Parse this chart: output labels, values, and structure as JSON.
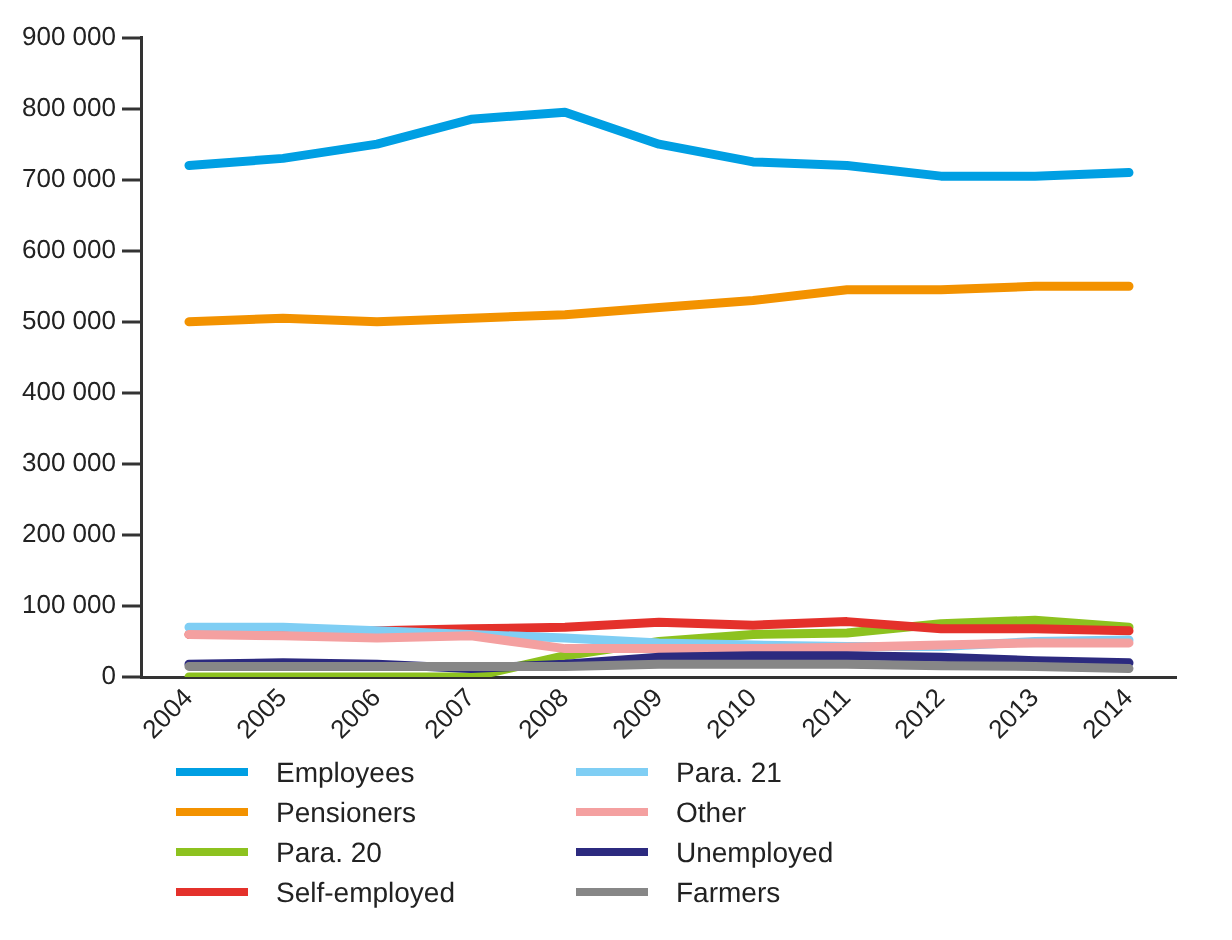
{
  "chart_data": {
    "type": "line",
    "categories": [
      "2004",
      "2005",
      "2006",
      "2007",
      "2008",
      "2009",
      "2010",
      "2011",
      "2012",
      "2013",
      "2014"
    ],
    "ylim": [
      0,
      900000
    ],
    "yticks": [
      {
        "value": 0,
        "label": "0"
      },
      {
        "value": 100000,
        "label": "100 000"
      },
      {
        "value": 200000,
        "label": "200 000"
      },
      {
        "value": 300000,
        "label": "300 000"
      },
      {
        "value": 400000,
        "label": "400 000"
      },
      {
        "value": 500000,
        "label": "500 000"
      },
      {
        "value": 600000,
        "label": "600 000"
      },
      {
        "value": 700000,
        "label": "700 000"
      },
      {
        "value": 800000,
        "label": "800 000"
      },
      {
        "value": 900000,
        "label": "900 000"
      }
    ],
    "grid": false,
    "legend": "bottom left",
    "marker": "none",
    "line_style": "solid",
    "series": [
      {
        "name": "Employees",
        "color": "#009fe3",
        "values": [
          720000,
          730000,
          750000,
          785000,
          795000,
          750000,
          725000,
          720000,
          705000,
          705000,
          710000
        ]
      },
      {
        "name": "Pensioners",
        "color": "#f39200",
        "values": [
          500000,
          505000,
          500000,
          505000,
          510000,
          520000,
          530000,
          545000,
          545000,
          550000,
          550000
        ]
      },
      {
        "name": "Para. 20",
        "color": "#8dc21f",
        "values": [
          0,
          0,
          0,
          0,
          30000,
          50000,
          60000,
          62000,
          75000,
          80000,
          70000
        ]
      },
      {
        "name": "Self-employed",
        "color": "#e4312b",
        "values": [
          60000,
          60000,
          65000,
          68000,
          70000,
          77000,
          73000,
          78000,
          68000,
          68000,
          65000
        ]
      },
      {
        "name": "Para. 21",
        "color": "#7fcef4",
        "values": [
          70000,
          70000,
          65000,
          60000,
          55000,
          48000,
          45000,
          43000,
          43000,
          50000,
          52000
        ]
      },
      {
        "name": "Other",
        "color": "#f4a0a0",
        "values": [
          60000,
          58000,
          55000,
          58000,
          40000,
          40000,
          40000,
          42000,
          45000,
          48000,
          48000
        ]
      },
      {
        "name": "Unemployed",
        "color": "#2c2a7f",
        "values": [
          18000,
          20000,
          18000,
          12000,
          18000,
          28000,
          30000,
          30000,
          28000,
          23000,
          20000
        ]
      },
      {
        "name": "Farmers",
        "color": "#878787",
        "values": [
          15000,
          15000,
          15000,
          15000,
          15000,
          18000,
          18000,
          18000,
          16000,
          15000,
          12000
        ]
      }
    ]
  }
}
